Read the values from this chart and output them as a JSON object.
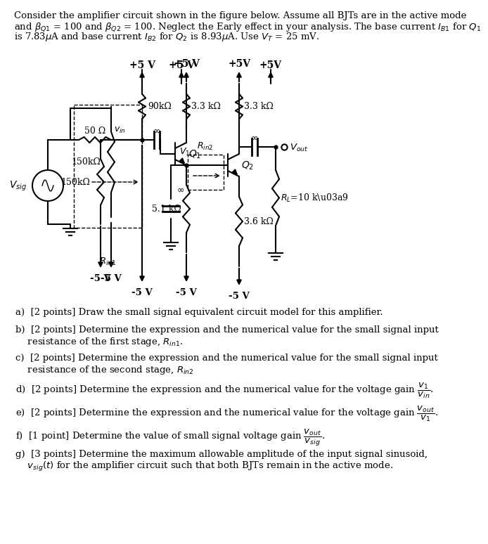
{
  "bg": "#ffffff",
  "lw": 1.5,
  "header": [
    "Consider the amplifier circuit shown in the figure below. Assume all BJTs are in the active mode",
    "and β⁑₁ = 100 and β⁑₂ = 100. Neglect the Early effect in your analysis. The base current Iʙ₁ for Q₁",
    "is 7.83μA and base current Iʙ₂ for Q₂ is 8.93μA. Use Vᵀ = 25 mV."
  ]
}
